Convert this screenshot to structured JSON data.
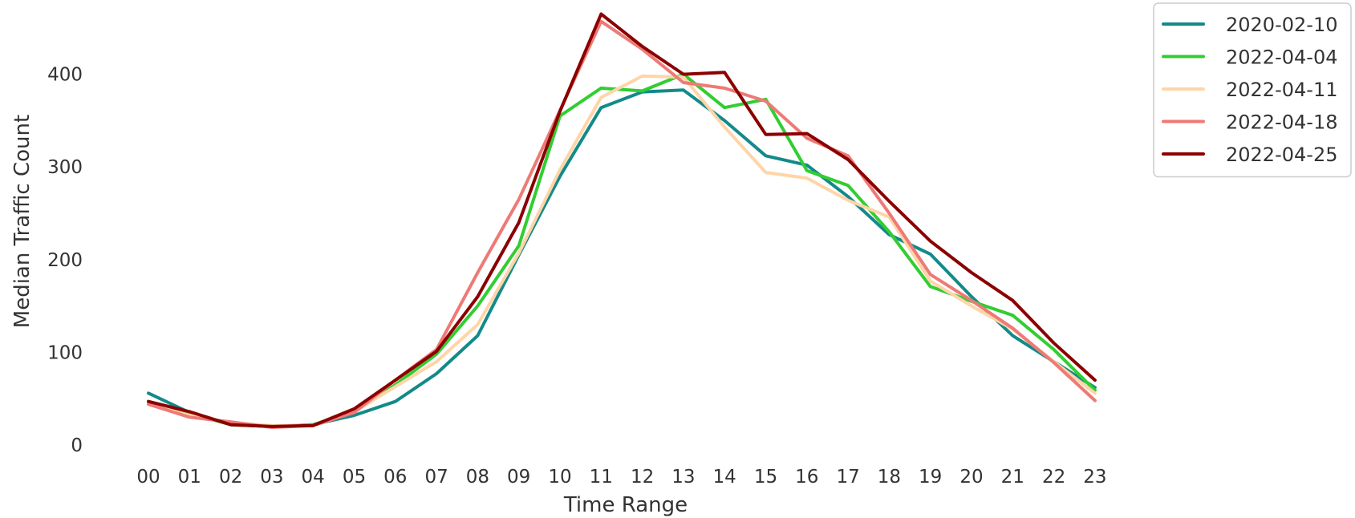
{
  "chart_data": {
    "type": "line",
    "title": "",
    "xlabel": "Time Range",
    "ylabel": "Median Traffic Count",
    "categories": [
      "00",
      "01",
      "02",
      "03",
      "04",
      "05",
      "06",
      "07",
      "08",
      "09",
      "10",
      "11",
      "12",
      "13",
      "14",
      "15",
      "16",
      "17",
      "18",
      "19",
      "20",
      "21",
      "22",
      "23"
    ],
    "yticks": [
      0,
      100,
      200,
      300,
      400
    ],
    "ylim": [
      0,
      465
    ],
    "grid": false,
    "legend_position": "outside top-right",
    "series": [
      {
        "name": "2020-02-10",
        "color": "#138a8a",
        "values": [
          56,
          35,
          22,
          20,
          22,
          32,
          47,
          77,
          118,
          205,
          290,
          364,
          381,
          383,
          350,
          312,
          302,
          268,
          227,
          206,
          160,
          118,
          90,
          62
        ]
      },
      {
        "name": "2022-04-04",
        "color": "#32cd32",
        "values": [
          47,
          34,
          22,
          20,
          22,
          36,
          65,
          98,
          150,
          215,
          355,
          385,
          382,
          400,
          364,
          373,
          296,
          280,
          230,
          171,
          155,
          140,
          103,
          59
        ]
      },
      {
        "name": "2022-04-11",
        "color": "#ffd5a8",
        "values": [
          44,
          32,
          24,
          21,
          21,
          36,
          63,
          90,
          130,
          207,
          297,
          375,
          398,
          397,
          343,
          294,
          288,
          264,
          246,
          177,
          150,
          125,
          90,
          56
        ]
      },
      {
        "name": "2022-04-18",
        "color": "#ee7a76",
        "values": [
          44,
          30,
          25,
          19,
          21,
          35,
          70,
          103,
          186,
          265,
          361,
          457,
          427,
          391,
          385,
          371,
          331,
          312,
          250,
          184,
          156,
          126,
          89,
          48
        ]
      },
      {
        "name": "2022-04-25",
        "color": "#8b0000",
        "values": [
          47,
          36,
          22,
          20,
          21,
          39,
          70,
          101,
          160,
          240,
          360,
          465,
          430,
          400,
          402,
          335,
          336,
          308,
          263,
          220,
          186,
          156,
          110,
          70
        ]
      }
    ]
  }
}
